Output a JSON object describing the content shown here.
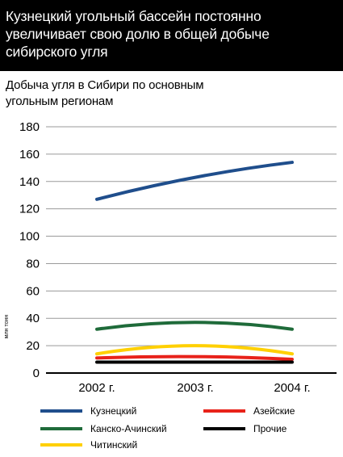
{
  "headline": "Кузнецкий угольный бассейн постоянно увеличивает свою долю в общей добыче сибирского угля",
  "chart_data": {
    "type": "line",
    "title": "Добыча угля в Сибири по основным угольным регионам",
    "ylabel": "млн тонн",
    "xlabel": "",
    "categories": [
      "2002 г.",
      "2003 г.",
      "2004 г."
    ],
    "ylim": [
      0,
      180
    ],
    "yticks": [
      0,
      20,
      40,
      60,
      80,
      100,
      120,
      140,
      160,
      180
    ],
    "grid": true,
    "legend_position": "bottom",
    "series": [
      {
        "name": "Кузнецкий",
        "color": "#1f4e8c",
        "values": [
          127,
          143,
          154
        ]
      },
      {
        "name": "Канско-Ачинский",
        "color": "#1f6b3a",
        "values": [
          32,
          37,
          32
        ]
      },
      {
        "name": "Читинский",
        "color": "#ffd000",
        "values": [
          14,
          20,
          14
        ]
      },
      {
        "name": "Азейские",
        "color": "#e8221a",
        "values": [
          11,
          12,
          10
        ]
      },
      {
        "name": "Прочие",
        "color": "#000000",
        "values": [
          8,
          8,
          8
        ]
      }
    ]
  }
}
